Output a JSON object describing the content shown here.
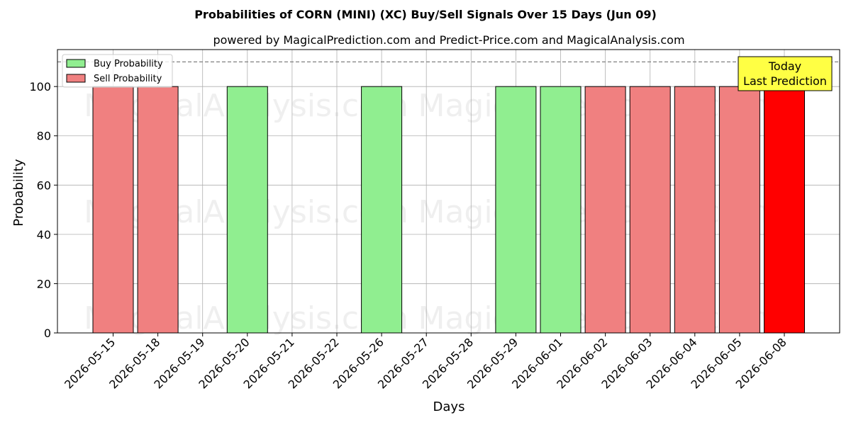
{
  "chart_data": {
    "type": "bar",
    "title": "Probabilities of CORN (MINI) (XC) Buy/Sell Signals Over 15 Days (Jun 09)",
    "subtitle": "powered by MagicalPrediction.com and Predict-Price.com and MagicalAnalysis.com",
    "xlabel": "Days",
    "ylabel": "Probability",
    "ylim": [
      0,
      115
    ],
    "yticks": [
      0,
      20,
      40,
      60,
      80,
      100
    ],
    "grid": true,
    "legend_position": "top-left",
    "categories": [
      "2026-05-15",
      "2026-05-18",
      "2026-05-19",
      "2026-05-20",
      "2026-05-21",
      "2026-05-22",
      "2026-05-26",
      "2026-05-27",
      "2026-05-28",
      "2026-05-29",
      "2026-06-01",
      "2026-06-02",
      "2026-06-03",
      "2026-06-04",
      "2026-06-05",
      "2026-06-08"
    ],
    "series": [
      {
        "name": "Buy Probability",
        "color": "#90ee90",
        "values": [
          0,
          0,
          0,
          100,
          0,
          0,
          100,
          0,
          0,
          100,
          100,
          0,
          0,
          0,
          0,
          0
        ]
      },
      {
        "name": "Sell Probability",
        "color": "#f08080",
        "values": [
          100,
          100,
          0,
          0,
          0,
          0,
          0,
          0,
          0,
          0,
          0,
          100,
          100,
          100,
          100,
          100
        ]
      }
    ],
    "highlight": {
      "category": "2026-06-08",
      "color": "#ff0000"
    },
    "reference_line": {
      "value": 110,
      "style": "dashed"
    },
    "annotation": {
      "lines": [
        "Today",
        "Last Prediction"
      ],
      "background": "#ffff44"
    },
    "watermarks": [
      "MagicalAnalysis.com",
      "MagicalPrediction.com"
    ]
  }
}
